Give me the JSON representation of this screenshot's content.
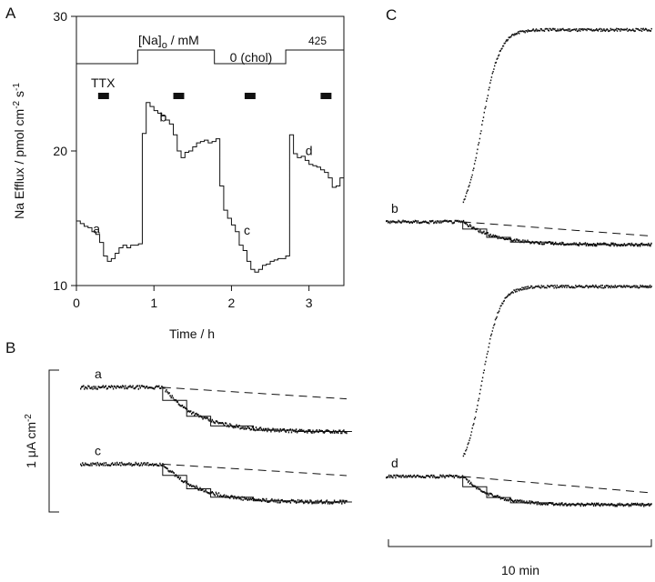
{
  "panels": {
    "A": "A",
    "B": "B",
    "C": "C"
  },
  "chart_data": [
    {
      "panel": "A",
      "type": "line",
      "xlabel": "Time / h",
      "ylabel": "Na Efflux / pmol cm-2 s-1",
      "xlim": [
        0,
        3.45
      ],
      "ylim": [
        10,
        30
      ],
      "xticks": [
        0,
        1,
        2,
        3
      ],
      "yticks": [
        10,
        20,
        30
      ],
      "na_trace": {
        "label": "[Na]o / mM",
        "condition_label": "0 (chol)",
        "concentration_label": "425",
        "segments": [
          {
            "x0": 0.0,
            "x1": 0.79,
            "level": "low"
          },
          {
            "x0": 0.79,
            "x1": 1.78,
            "level": "high"
          },
          {
            "x0": 1.78,
            "x1": 2.7,
            "level": "low"
          },
          {
            "x0": 2.7,
            "x1": 3.45,
            "level": "high"
          }
        ]
      },
      "ttx": {
        "label": "TTX",
        "bars": [
          [
            0.28,
            0.42
          ],
          [
            1.25,
            1.39
          ],
          [
            2.17,
            2.31
          ],
          [
            3.15,
            3.29
          ]
        ]
      },
      "series": [
        {
          "x": [
            0.0,
            0.05,
            0.1,
            0.15,
            0.2,
            0.25,
            0.3,
            0.35,
            0.4,
            0.45,
            0.5,
            0.55,
            0.6,
            0.65,
            0.7,
            0.75,
            0.8,
            0.85,
            0.9,
            0.95,
            1.0,
            1.05,
            1.1,
            1.15,
            1.2,
            1.25,
            1.3,
            1.35,
            1.4,
            1.45,
            1.5,
            1.55,
            1.6,
            1.65,
            1.7,
            1.75,
            1.8,
            1.85,
            1.9,
            1.95,
            2.0,
            2.05,
            2.1,
            2.15,
            2.2,
            2.25,
            2.3,
            2.35,
            2.4,
            2.45,
            2.5,
            2.55,
            2.6,
            2.65,
            2.7,
            2.75,
            2.8,
            2.85,
            2.9,
            2.95,
            3.0,
            3.05,
            3.1,
            3.15,
            3.2,
            3.25,
            3.3,
            3.35,
            3.4
          ],
          "y": [
            14.8,
            14.6,
            14.4,
            14.3,
            14.0,
            13.8,
            13.2,
            12.2,
            11.8,
            12.0,
            12.4,
            12.8,
            13.0,
            12.8,
            13.0,
            13.0,
            13.1,
            21.3,
            23.6,
            23.3,
            23.0,
            22.8,
            22.6,
            22.3,
            22.0,
            21.2,
            20.0,
            19.5,
            19.9,
            20.0,
            20.3,
            20.6,
            20.7,
            20.8,
            20.6,
            20.7,
            20.9,
            17.4,
            15.6,
            15.0,
            14.5,
            14.0,
            13.0,
            12.6,
            11.8,
            11.2,
            11.0,
            11.2,
            11.5,
            11.6,
            11.8,
            11.9,
            12.0,
            12.0,
            12.2,
            21.2,
            19.8,
            19.5,
            19.6,
            19.3,
            19.0,
            18.9,
            18.8,
            18.6,
            18.4,
            18.0,
            17.3,
            17.4,
            18.0
          ]
        }
      ],
      "annotations": [
        {
          "text": "a",
          "x": 0.26,
          "y": 13.9
        },
        {
          "text": "b",
          "x": 1.12,
          "y": 22.2
        },
        {
          "text": "c",
          "x": 2.2,
          "y": 13.8
        },
        {
          "text": "d",
          "x": 3.0,
          "y": 19.7
        }
      ]
    },
    {
      "panel": "B",
      "type": "line",
      "ylabel": "1 μA cm-2",
      "xlim": [
        0,
        10
      ],
      "traces": [
        {
          "label": "a",
          "baseline": 0,
          "t_step": 3.1,
          "drop": 3.5,
          "tau": 1.3,
          "dash_end": -0.9
        },
        {
          "label": "c",
          "baseline": -5.6,
          "t_step": 3.1,
          "drop": 3.0,
          "tau": 1.3,
          "dash_end": -0.9
        }
      ]
    },
    {
      "panel": "C",
      "type": "line",
      "scale_bar_label": "10 min",
      "xlim": [
        0,
        10
      ],
      "traces": [
        {
          "label": "b",
          "baseline": 0,
          "t_step": 2.9,
          "drop": 2.1,
          "tau": 1.2,
          "dash_end": -1.3,
          "rise": 17.6
        },
        {
          "label": "d",
          "baseline": 0,
          "t_step": 2.9,
          "drop": 2.6,
          "tau": 1.0,
          "dash_end": -1.5,
          "rise": 17.4
        }
      ]
    }
  ]
}
